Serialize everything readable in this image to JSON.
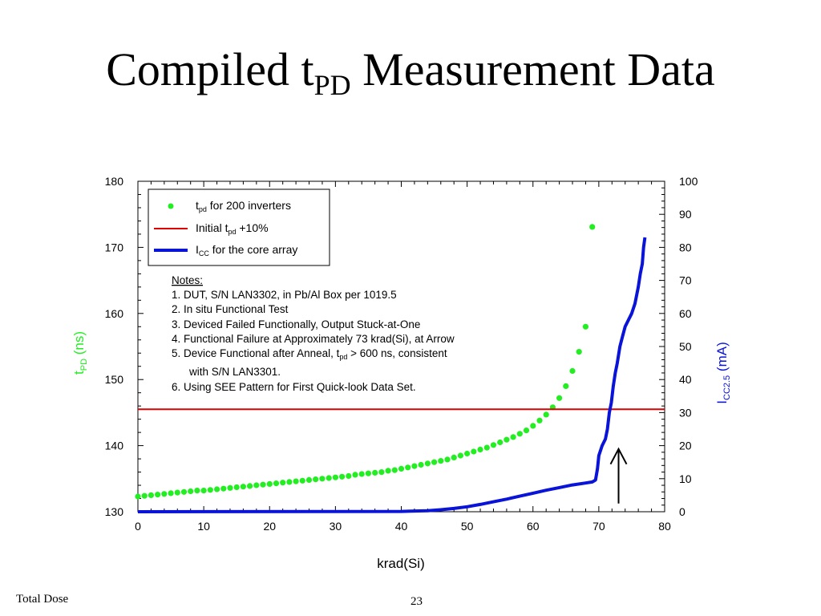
{
  "slide": {
    "title_main": "Compiled t",
    "title_sub": "PD",
    "title_rest": " Measurement Data",
    "footer_left": "Total Dose",
    "page_number": "23"
  },
  "colors": {
    "tpd": "#22ee22",
    "limit": "#dd0000",
    "icc": "#0a14d8",
    "axis": "#000000"
  },
  "chart_data": {
    "type": "scatter",
    "x": {
      "label": "krad(Si)",
      "range": [
        0,
        80
      ],
      "ticks": [
        "0",
        "10",
        "20",
        "30",
        "40",
        "50",
        "60",
        "70",
        "80"
      ]
    },
    "y_left": {
      "label_main": "t",
      "label_sub": "PD",
      "label_rest": " (ns)",
      "range": [
        130,
        180
      ],
      "ticks": [
        "130",
        "140",
        "150",
        "160",
        "170",
        "180"
      ]
    },
    "y_right": {
      "label_main": "I",
      "label_sub": "CC2.5",
      "label_rest": " (mA)",
      "range": [
        0,
        100
      ],
      "ticks": [
        "0",
        "10",
        "20",
        "30",
        "40",
        "50",
        "60",
        "70",
        "80",
        "90",
        "100"
      ]
    },
    "grid": false,
    "legend_position": "top-left",
    "legend": [
      {
        "main": "t",
        "sub": "pd",
        "rest": " for 200 inverters"
      },
      {
        "main": "Initial t",
        "sub": "pd",
        "rest": " +10%"
      },
      {
        "main": "I",
        "sub": "CC",
        "rest": " for the core array"
      }
    ],
    "notes": {
      "heading": "Notes:",
      "lines": [
        "1. DUT, S/N LAN3302, in Pb/Al Box per 1019.5",
        "2. In situ Functional Test",
        "3. Deviced Failed Functionally, Output Stuck-at-One",
        "4. Functional Failure at Approximately 73 krad(Si), at Arrow"
      ],
      "line5_pre": "5. Device Functional after Anneal, t",
      "line5_sub": "pd",
      "line5_post": " > 600 ns, consistent",
      "line5_cont": "with S/N LAN3301.",
      "line6": "6. Using SEE Pattern for First Quick-look Data Set."
    },
    "series": [
      {
        "name": "tpd for 200 inverters",
        "axis": "left",
        "style": "markers",
        "points": [
          [
            0,
            132.3
          ],
          [
            1,
            132.4
          ],
          [
            2,
            132.5
          ],
          [
            3,
            132.6
          ],
          [
            4,
            132.7
          ],
          [
            5,
            132.8
          ],
          [
            6,
            132.9
          ],
          [
            7,
            133.0
          ],
          [
            8,
            133.1
          ],
          [
            9,
            133.2
          ],
          [
            10,
            133.2
          ],
          [
            11,
            133.3
          ],
          [
            12,
            133.4
          ],
          [
            13,
            133.5
          ],
          [
            14,
            133.6
          ],
          [
            15,
            133.7
          ],
          [
            16,
            133.8
          ],
          [
            17,
            133.9
          ],
          [
            18,
            134.0
          ],
          [
            19,
            134.1
          ],
          [
            20,
            134.2
          ],
          [
            21,
            134.3
          ],
          [
            22,
            134.4
          ],
          [
            23,
            134.5
          ],
          [
            24,
            134.6
          ],
          [
            25,
            134.7
          ],
          [
            26,
            134.8
          ],
          [
            27,
            134.9
          ],
          [
            28,
            135.0
          ],
          [
            29,
            135.1
          ],
          [
            30,
            135.2
          ],
          [
            31,
            135.3
          ],
          [
            32,
            135.4
          ],
          [
            33,
            135.6
          ],
          [
            34,
            135.7
          ],
          [
            35,
            135.8
          ],
          [
            36,
            135.9
          ],
          [
            37,
            136.0
          ],
          [
            38,
            136.2
          ],
          [
            39,
            136.3
          ],
          [
            40,
            136.5
          ],
          [
            41,
            136.7
          ],
          [
            42,
            136.9
          ],
          [
            43,
            137.1
          ],
          [
            44,
            137.3
          ],
          [
            45,
            137.5
          ],
          [
            46,
            137.7
          ],
          [
            47,
            137.9
          ],
          [
            48,
            138.2
          ],
          [
            49,
            138.5
          ],
          [
            50,
            138.8
          ],
          [
            51,
            139.1
          ],
          [
            52,
            139.4
          ],
          [
            53,
            139.7
          ],
          [
            54,
            140.1
          ],
          [
            55,
            140.5
          ],
          [
            56,
            140.9
          ],
          [
            57,
            141.3
          ],
          [
            58,
            141.8
          ],
          [
            59,
            142.3
          ],
          [
            60,
            143.0
          ],
          [
            61,
            143.8
          ],
          [
            62,
            144.7
          ],
          [
            63,
            145.8
          ],
          [
            64,
            147.2
          ],
          [
            65,
            149.0
          ],
          [
            66,
            151.3
          ],
          [
            67,
            154.2
          ],
          [
            68,
            158.0
          ],
          [
            69,
            173.1
          ]
        ]
      },
      {
        "name": "Initial tpd +10%",
        "axis": "left",
        "style": "hline",
        "value": 145.5
      },
      {
        "name": "ICC for the core array",
        "axis": "right",
        "style": "line",
        "points": [
          [
            0,
            0
          ],
          [
            40,
            0.1
          ],
          [
            44,
            0.3
          ],
          [
            46,
            0.6
          ],
          [
            48,
            1.0
          ],
          [
            50,
            1.5
          ],
          [
            52,
            2.2
          ],
          [
            54,
            3.0
          ],
          [
            56,
            3.8
          ],
          [
            58,
            4.7
          ],
          [
            60,
            5.6
          ],
          [
            62,
            6.5
          ],
          [
            64,
            7.3
          ],
          [
            66,
            8.1
          ],
          [
            68,
            8.7
          ],
          [
            69,
            9.0
          ],
          [
            69.5,
            9.6
          ],
          [
            69.8,
            13
          ],
          [
            70,
            17
          ],
          [
            70.5,
            20
          ],
          [
            71,
            22
          ],
          [
            71.3,
            25
          ],
          [
            71.6,
            30
          ],
          [
            71.9,
            33
          ],
          [
            72.2,
            38
          ],
          [
            72.5,
            42
          ],
          [
            72.8,
            45
          ],
          [
            73.2,
            50
          ],
          [
            73.6,
            53
          ],
          [
            74,
            56
          ],
          [
            74.5,
            58
          ],
          [
            75,
            60
          ],
          [
            75.5,
            63
          ],
          [
            76,
            68
          ],
          [
            76.3,
            72
          ],
          [
            76.6,
            75
          ],
          [
            76.8,
            80
          ],
          [
            77,
            83
          ]
        ]
      }
    ],
    "annotations": [
      {
        "type": "arrow",
        "x": 73,
        "y_right_from": 2.5,
        "y_right_to": 19
      }
    ]
  }
}
